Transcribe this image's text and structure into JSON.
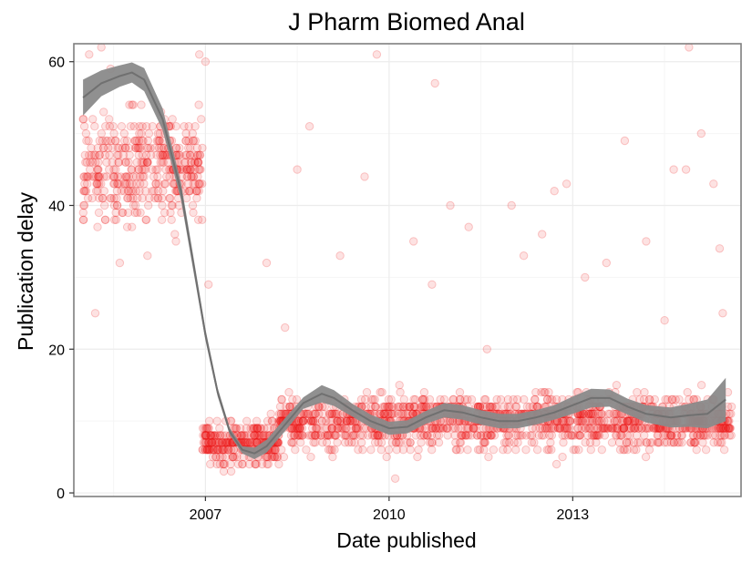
{
  "chart_data": {
    "type": "scatter",
    "title": "J Pharm Biomed Anal",
    "xlabel": "Date published",
    "ylabel": "Publication delay",
    "x_unit": "year",
    "xlim": [
      2004.85,
      2015.75
    ],
    "ylim": [
      -0.5,
      62.5
    ],
    "x_ticks": [
      2007,
      2010,
      2013
    ],
    "x_tick_labels": [
      "2007",
      "2010",
      "2013"
    ],
    "y_ticks": [
      0,
      20,
      40,
      60
    ],
    "y_tick_labels": [
      "0",
      "20",
      "40",
      "60"
    ],
    "grid": true,
    "legend": "none",
    "colors": {
      "points": "#ee1111",
      "smooth_band": "#8a8a8a",
      "smooth_line": "#707070",
      "panel_border": "#7f7f7f",
      "grid": "#ececec"
    },
    "series": [
      {
        "kind": "points",
        "segments": [
          {
            "x_start": 2005.0,
            "x_end": 2006.95,
            "y_center": 45,
            "y_spread": 11,
            "count": 420
          },
          {
            "x_start": 2006.95,
            "x_end": 2008.2,
            "y_center": 7,
            "y_spread": 4,
            "count": 300
          },
          {
            "x_start": 2008.2,
            "x_end": 2015.6,
            "y_center": 10,
            "y_spread": 5,
            "count": 1500
          }
        ],
        "sample_points": [
          [
            2005.0,
            52
          ],
          [
            2005.1,
            61
          ],
          [
            2005.2,
            25
          ],
          [
            2005.3,
            62
          ],
          [
            2005.45,
            59
          ],
          [
            2005.6,
            32
          ],
          [
            2005.8,
            54
          ],
          [
            2006.1,
            63
          ],
          [
            2006.3,
            47
          ],
          [
            2006.5,
            36
          ],
          [
            2006.7,
            63
          ],
          [
            2006.9,
            61
          ],
          [
            2007.0,
            60
          ],
          [
            2007.05,
            29
          ],
          [
            2007.3,
            3
          ],
          [
            2007.6,
            4
          ],
          [
            2008.0,
            32
          ],
          [
            2008.3,
            23
          ],
          [
            2008.5,
            45
          ],
          [
            2008.7,
            51
          ],
          [
            2009.2,
            33
          ],
          [
            2009.6,
            44
          ],
          [
            2009.8,
            61
          ],
          [
            2010.1,
            2
          ],
          [
            2010.4,
            35
          ],
          [
            2010.7,
            29
          ],
          [
            2010.75,
            57
          ],
          [
            2011.0,
            40
          ],
          [
            2011.3,
            37
          ],
          [
            2011.6,
            20
          ],
          [
            2012.0,
            40
          ],
          [
            2012.2,
            33
          ],
          [
            2012.5,
            36
          ],
          [
            2012.7,
            42
          ],
          [
            2012.9,
            43
          ],
          [
            2013.2,
            30
          ],
          [
            2013.55,
            32
          ],
          [
            2013.85,
            49
          ],
          [
            2014.2,
            35
          ],
          [
            2014.5,
            24
          ],
          [
            2014.65,
            45
          ],
          [
            2014.85,
            45
          ],
          [
            2014.9,
            62
          ],
          [
            2015.1,
            50
          ],
          [
            2015.3,
            43
          ],
          [
            2015.4,
            34
          ],
          [
            2015.45,
            25
          ]
        ]
      },
      {
        "kind": "smooth",
        "x": [
          2005.0,
          2005.3,
          2005.6,
          2005.8,
          2006.0,
          2006.3,
          2006.6,
          2006.8,
          2007.0,
          2007.2,
          2007.4,
          2007.6,
          2007.8,
          2008.0,
          2008.3,
          2008.6,
          2008.9,
          2009.1,
          2009.4,
          2009.7,
          2010.0,
          2010.3,
          2010.6,
          2010.9,
          2011.2,
          2011.5,
          2011.8,
          2012.1,
          2012.4,
          2012.7,
          2013.0,
          2013.3,
          2013.6,
          2013.9,
          2014.2,
          2014.6,
          2014.9,
          2015.2,
          2015.5
        ],
        "y": [
          55,
          57,
          58,
          58.5,
          57.5,
          52,
          42,
          32,
          22,
          14,
          8.5,
          6,
          5.5,
          6.5,
          9.5,
          12.5,
          13.8,
          13.2,
          11.5,
          10,
          9,
          9.2,
          10.5,
          11.5,
          11.2,
          10.5,
          10,
          10,
          10.5,
          11.2,
          12.2,
          13.2,
          13.2,
          12,
          11,
          10.5,
          10.8,
          11,
          13
        ],
        "band_half_width": [
          2.5,
          1.8,
          1.5,
          1.4,
          1.6,
          1.5,
          1.2,
          1.0,
          0.8,
          0.6,
          0.5,
          0.5,
          0.8,
          0.9,
          0.9,
          0.8,
          1.2,
          1.1,
          0.9,
          0.9,
          0.9,
          0.9,
          0.9,
          1.0,
          1.0,
          1.0,
          1.0,
          1.0,
          1.0,
          1.0,
          1.2,
          1.3,
          1.2,
          1.1,
          1.2,
          1.4,
          1.6,
          2.0,
          3.0
        ]
      }
    ]
  }
}
